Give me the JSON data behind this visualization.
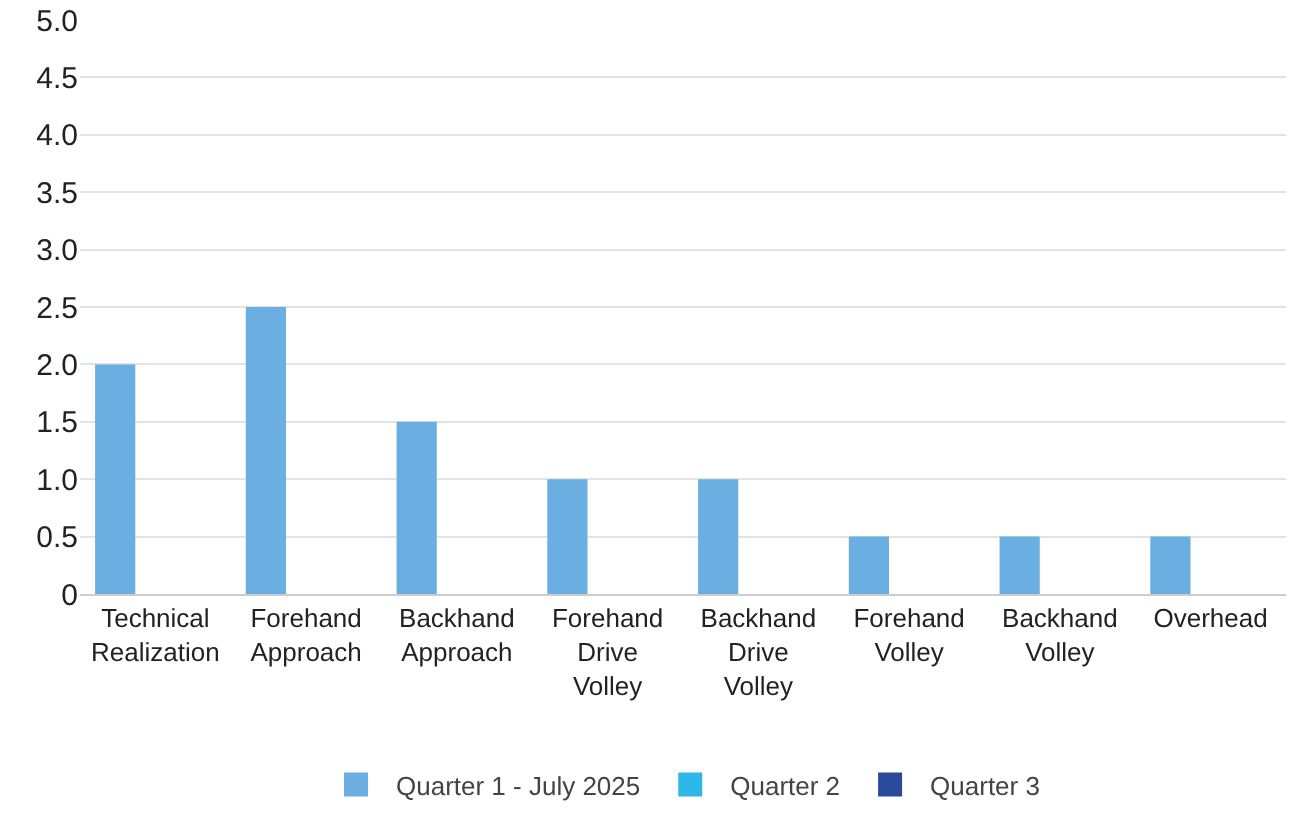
{
  "chart_data": {
    "type": "bar",
    "categories": [
      "Technical Realization",
      "Forehand Approach",
      "Backhand Approach",
      "Forehand Drive Volley",
      "Backhand Drive Volley",
      "Forehand Volley",
      "Backhand Volley",
      "Overhead"
    ],
    "series": [
      {
        "name": "Quarter 1 - July 2025",
        "color": "#6aaee2",
        "values": [
          2,
          2.5,
          1.5,
          1,
          1,
          0.5,
          0.5,
          0.5
        ]
      },
      {
        "name": "Quarter 2",
        "color": "#2bb8e8",
        "values": [
          null,
          null,
          null,
          null,
          null,
          null,
          null,
          null
        ]
      },
      {
        "name": "Quarter 3",
        "color": "#2c4a9c",
        "values": [
          null,
          null,
          null,
          null,
          null,
          null,
          null,
          null
        ]
      }
    ],
    "ylim": [
      0,
      5
    ],
    "yticks": [
      0,
      {
        "value": 0.5,
        "label": "0.5"
      },
      {
        "value": 1,
        "label": "1.0"
      },
      {
        "value": 1.5,
        "label": "1.5"
      },
      {
        "value": 2,
        "label": "2.0"
      },
      {
        "value": 2.5,
        "label": "2.5"
      },
      {
        "value": 3,
        "label": "3.0"
      },
      {
        "value": 3.5,
        "label": "3.5"
      },
      {
        "value": 4,
        "label": "4.0"
      },
      {
        "value": 4.5,
        "label": "4.5"
      },
      {
        "value": 5,
        "label": "5.0"
      }
    ],
    "grid": "y",
    "legend": "bottom"
  }
}
